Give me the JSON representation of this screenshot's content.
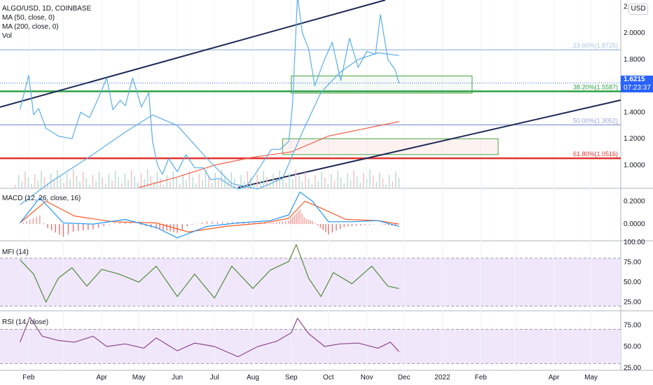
{
  "header": {
    "symbol_line": "ALGO/USD, 1D, COINBASE",
    "ma50_label": "MA (50, close, 0)",
    "ma200_label": "MA (200, close, 0)",
    "vol_label": "Vol"
  },
  "price_badge": {
    "price": "1.6215",
    "countdown": "07:23:37"
  },
  "currency_button": "USD",
  "indicator_labels": {
    "macd": "MACD (12, 26, close, 16)",
    "mfi": "MFI (14)",
    "rsi": "RSI (14, close)"
  },
  "fib_labels": {
    "f236": "23.60%(1.8725)",
    "f382": "38.20%(1.5587)",
    "f500": "50.00%(1.3052)",
    "f618": "61.80%(1.0516)"
  },
  "colors": {
    "price": "#5aaee7",
    "ma50": "#5aaee7",
    "ma200": "#f0614d",
    "macd_line": "#2196f3",
    "signal_line": "#ff5722",
    "mfi": "#4f8c3a",
    "rsi": "#8e4a8e",
    "osc_band": "#f1e7fb",
    "fib236": "#a9c6e0",
    "fib382": "#2ea043",
    "fib500": "#9aa6da",
    "fib618": "#e0332e",
    "channel": "#1e2a55",
    "hist_pos": "#e57373",
    "hist_neg": "#e57373"
  },
  "chart_data": [
    {
      "pane": "price",
      "type": "line",
      "title": "ALGO/USD, 1D, COINBASE",
      "y_axis_ticks": [
        "2.",
        "2.0000",
        "1.8000",
        "1.6000",
        "1.4000",
        "1.2000",
        "1.0000"
      ],
      "x_axis_ticks": [
        "Feb",
        "Apr",
        "May",
        "Jun",
        "Jul",
        "Aug",
        "Sep",
        "Oct",
        "Nov",
        "Dec",
        "2022",
        "Feb",
        "Apr",
        "May"
      ],
      "ylim": [
        0.83,
        2.25
      ],
      "series": [
        {
          "name": "ALGO/USD",
          "x": [
            "2021-01-25",
            "2021-02-01",
            "2021-02-05",
            "2021-02-09",
            "2021-02-15",
            "2021-02-25",
            "2021-03-08",
            "2021-03-15",
            "2021-03-22",
            "2021-03-29",
            "2021-04-05",
            "2021-04-10",
            "2021-04-16",
            "2021-04-20",
            "2021-04-26",
            "2021-05-03",
            "2021-05-09",
            "2021-05-12",
            "2021-05-16",
            "2021-05-20",
            "2021-05-25",
            "2021-06-01",
            "2021-06-08",
            "2021-06-15",
            "2021-06-22",
            "2021-06-28",
            "2021-07-05",
            "2021-07-15",
            "2021-07-20",
            "2021-07-26",
            "2021-08-02",
            "2021-08-09",
            "2021-08-16",
            "2021-08-23",
            "2021-08-30",
            "2021-09-02",
            "2021-09-06",
            "2021-09-10",
            "2021-09-15",
            "2021-09-20",
            "2021-09-27",
            "2021-10-04",
            "2021-10-11",
            "2021-10-18",
            "2021-10-25",
            "2021-11-01",
            "2021-11-08",
            "2021-11-12",
            "2021-11-18",
            "2021-11-24",
            "2021-11-27"
          ],
          "y": [
            1.42,
            1.68,
            1.38,
            1.43,
            1.28,
            1.22,
            1.2,
            1.4,
            1.36,
            1.5,
            1.66,
            1.42,
            1.49,
            1.45,
            1.66,
            1.44,
            1.55,
            1.18,
            1.0,
            0.93,
            1.05,
            0.95,
            1.08,
            0.98,
            0.98,
            0.89,
            0.9,
            0.84,
            0.82,
            0.83,
            0.92,
            1.02,
            1.12,
            1.12,
            1.18,
            1.45,
            2.28,
            2.0,
            1.88,
            1.6,
            1.78,
            1.93,
            1.64,
            1.96,
            1.74,
            1.86,
            1.84,
            2.14,
            1.8,
            1.72,
            1.62
          ]
        },
        {
          "name": "MA (50, close, 0)",
          "x": [
            "2021-01-25",
            "2021-02-20",
            "2021-03-20",
            "2021-04-20",
            "2021-05-12",
            "2021-06-01",
            "2021-06-25",
            "2021-07-15",
            "2021-08-05",
            "2021-08-25",
            "2021-09-10",
            "2021-09-25",
            "2021-10-10",
            "2021-10-25",
            "2021-11-10",
            "2021-11-27"
          ],
          "y": [
            0.7,
            0.88,
            1.05,
            1.25,
            1.38,
            1.3,
            1.05,
            0.86,
            0.82,
            0.9,
            1.25,
            1.55,
            1.7,
            1.8,
            1.85,
            1.83
          ]
        },
        {
          "name": "MA (200, close, 0)",
          "x": [
            "2021-05-01",
            "2021-06-01",
            "2021-07-01",
            "2021-08-01",
            "2021-09-01",
            "2021-10-01",
            "2021-11-01",
            "2021-11-27"
          ],
          "y": [
            0.83,
            0.91,
            1.0,
            1.06,
            1.1,
            1.22,
            1.28,
            1.33
          ]
        }
      ],
      "fibonacci_levels": [
        {
          "ratio": "23.60%",
          "value": 1.8725
        },
        {
          "ratio": "38.20%",
          "value": 1.5587
        },
        {
          "ratio": "50.00%",
          "value": 1.3052
        },
        {
          "ratio": "61.80%",
          "value": 1.0516
        }
      ],
      "last_price": 1.6215
    },
    {
      "pane": "macd",
      "type": "line",
      "title": "MACD (12, 26, close, 16)",
      "y_axis_ticks": [
        "0.2000",
        "0.0000"
      ],
      "ylim": [
        -0.14,
        0.3
      ],
      "series": [
        {
          "name": "MACD",
          "x": [
            "2021-01-25",
            "2021-02-10",
            "2021-03-01",
            "2021-03-25",
            "2021-04-20",
            "2021-05-15",
            "2021-06-01",
            "2021-06-25",
            "2021-07-20",
            "2021-08-15",
            "2021-08-30",
            "2021-09-08",
            "2021-09-18",
            "2021-10-01",
            "2021-10-20",
            "2021-11-10",
            "2021-11-27"
          ],
          "y": [
            0.01,
            0.23,
            0.01,
            0.0,
            0.04,
            -0.03,
            -0.12,
            -0.02,
            0.01,
            0.03,
            0.08,
            0.28,
            0.2,
            0.02,
            0.02,
            0.03,
            -0.02
          ]
        },
        {
          "name": "Signal",
          "x": [
            "2021-01-25",
            "2021-02-15",
            "2021-03-10",
            "2021-04-10",
            "2021-05-15",
            "2021-06-10",
            "2021-07-10",
            "2021-08-10",
            "2021-08-30",
            "2021-09-12",
            "2021-09-25",
            "2021-10-15",
            "2021-11-10",
            "2021-11-27"
          ],
          "y": [
            0.01,
            0.2,
            0.07,
            0.02,
            0.01,
            -0.07,
            -0.02,
            0.01,
            0.05,
            0.2,
            0.14,
            0.04,
            0.03,
            0.0
          ]
        }
      ]
    },
    {
      "pane": "mfi",
      "type": "line",
      "title": "MFI (14)",
      "y_axis_ticks": [
        "100.00",
        "75.00",
        "50.00",
        "25.00"
      ],
      "ylim": [
        15,
        100
      ],
      "bands": [
        80,
        20
      ],
      "series": [
        {
          "name": "MFI",
          "x": [
            "2021-01-25",
            "2021-02-05",
            "2021-02-15",
            "2021-02-25",
            "2021-03-08",
            "2021-03-20",
            "2021-04-01",
            "2021-04-15",
            "2021-05-01",
            "2021-05-15",
            "2021-06-01",
            "2021-06-15",
            "2021-07-01",
            "2021-07-15",
            "2021-08-01",
            "2021-08-15",
            "2021-08-30",
            "2021-09-05",
            "2021-09-15",
            "2021-09-25",
            "2021-10-05",
            "2021-10-20",
            "2021-11-05",
            "2021-11-18",
            "2021-11-27"
          ],
          "y": [
            78,
            60,
            25,
            55,
            68,
            45,
            66,
            60,
            50,
            70,
            32,
            60,
            30,
            70,
            42,
            65,
            76,
            97,
            55,
            32,
            62,
            48,
            70,
            45,
            42
          ]
        }
      ]
    },
    {
      "pane": "rsi",
      "type": "line",
      "title": "RSI (14, close)",
      "y_axis_ticks": [
        "75.00",
        "50.00",
        "25.00"
      ],
      "ylim": [
        23,
        90
      ],
      "bands": [
        70,
        30
      ],
      "series": [
        {
          "name": "RSI",
          "x": [
            "2021-01-25",
            "2021-02-02",
            "2021-02-12",
            "2021-02-25",
            "2021-03-10",
            "2021-03-25",
            "2021-04-05",
            "2021-04-20",
            "2021-05-05",
            "2021-05-15",
            "2021-06-01",
            "2021-06-15",
            "2021-07-01",
            "2021-07-20",
            "2021-08-05",
            "2021-08-20",
            "2021-09-01",
            "2021-09-06",
            "2021-09-15",
            "2021-09-28",
            "2021-10-10",
            "2021-10-25",
            "2021-11-10",
            "2021-11-20",
            "2021-11-27"
          ],
          "y": [
            55,
            84,
            62,
            57,
            55,
            62,
            50,
            53,
            48,
            60,
            45,
            54,
            50,
            38,
            50,
            56,
            66,
            83,
            65,
            50,
            53,
            54,
            48,
            55,
            44
          ]
        }
      ]
    }
  ]
}
